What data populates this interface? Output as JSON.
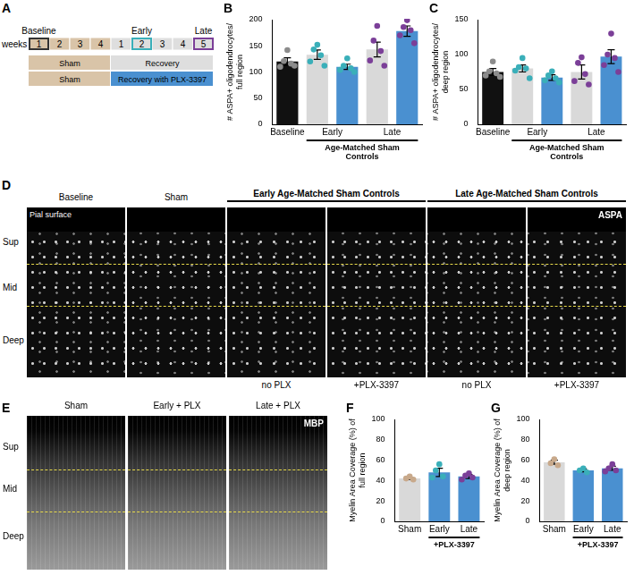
{
  "timeline": {
    "panel": "A",
    "axis_label": "weeks",
    "weeks": [
      1,
      2,
      3,
      4,
      1,
      2,
      3,
      4,
      5
    ],
    "phases": [
      {
        "label": "Baseline",
        "week_index": 0,
        "color": "#333333"
      },
      {
        "label": "Early",
        "week_index": 5,
        "color": "#3aafb9"
      },
      {
        "label": "Late",
        "week_index": 8,
        "color": "#7b3f98"
      }
    ],
    "rows": [
      [
        {
          "label": "Sham",
          "span": 4,
          "color": "#d9c4a8"
        },
        {
          "label": "Recovery",
          "span": 5,
          "color": "#dedede"
        }
      ],
      [
        {
          "label": "Sham",
          "span": 4,
          "color": "#d9c4a8"
        },
        {
          "label": "Recovery with PLX-3397",
          "span": 5,
          "color": "#4a90d0"
        }
      ]
    ]
  },
  "chart_data": [
    {
      "panel": "B",
      "type": "bar",
      "y_label": "# ASPA+ oligodendrocytes/full region",
      "ylim": [
        0,
        200
      ],
      "yticks": [
        0,
        50,
        100,
        150,
        200
      ],
      "grid": false,
      "bars": [
        {
          "group": "Baseline",
          "value": 120,
          "error": 7,
          "points": [
            142,
            121,
            116,
            110,
            112
          ],
          "color": "#111111",
          "point_color": "#8c8c8c"
        },
        {
          "group": "Early",
          "value": 133,
          "error": 9,
          "points": [
            152,
            143,
            132,
            120,
            112
          ],
          "color": "#d9d9d9",
          "point_color": "#3aafb9"
        },
        {
          "group": "Early",
          "value": 110,
          "error": 5,
          "points": [
            126,
            112,
            107,
            104,
            100
          ],
          "color": "#4a90d0",
          "point_color": "#3aafb9"
        },
        {
          "group": "Late",
          "value": 143,
          "error": 14,
          "points": [
            188,
            160,
            140,
            122,
            112
          ],
          "color": "#d9d9d9",
          "point_color": "#7b3f98"
        },
        {
          "group": "Late",
          "value": 178,
          "error": 10,
          "points": [
            199,
            186,
            180,
            170,
            155
          ],
          "color": "#4a90d0",
          "point_color": "#7b3f98"
        }
      ],
      "bracket": {
        "label": "Age-Matched Sham Controls",
        "groups": [
          "Early",
          "Late"
        ]
      }
    },
    {
      "panel": "C",
      "type": "bar",
      "y_label": "# ASPA+ oligodendrocytes/deep region",
      "ylim": [
        0,
        150
      ],
      "yticks": [
        0,
        50,
        100,
        150
      ],
      "grid": false,
      "bars": [
        {
          "group": "Baseline",
          "value": 75,
          "error": 5,
          "points": [
            90,
            76,
            73,
            70,
            68
          ],
          "color": "#111111",
          "point_color": "#8c8c8c"
        },
        {
          "group": "Early",
          "value": 80,
          "error": 5,
          "points": [
            95,
            82,
            80,
            77,
            66
          ],
          "color": "#d9d9d9",
          "point_color": "#3aafb9"
        },
        {
          "group": "Early",
          "value": 67,
          "error": 4,
          "points": [
            76,
            70,
            66,
            63,
            60
          ],
          "color": "#4a90d0",
          "point_color": "#3aafb9"
        },
        {
          "group": "Late",
          "value": 75,
          "error": 10,
          "points": [
            96,
            88,
            72,
            62,
            57
          ],
          "color": "#d9d9d9",
          "point_color": "#7b3f98"
        },
        {
          "group": "Late",
          "value": 97,
          "error": 10,
          "points": [
            130,
            100,
            95,
            85,
            75
          ],
          "color": "#4a90d0",
          "point_color": "#7b3f98"
        }
      ],
      "bracket": {
        "label": "Age-Matched Sham Controls",
        "groups": [
          "Early",
          "Late"
        ]
      }
    },
    {
      "panel": "F",
      "type": "bar",
      "y_label": "Myelin Area Coverage (%) of full region",
      "ylim": [
        0,
        100
      ],
      "yticks": [
        0,
        20,
        40,
        60,
        80,
        100
      ],
      "grid": false,
      "bars": [
        {
          "group": "Sham",
          "value": 42,
          "error": 1,
          "points": [
            44,
            42,
            41
          ],
          "color": "#d9d9d9",
          "point_color": "#c8a98b"
        },
        {
          "group": "Early",
          "value": 48,
          "error": 4,
          "points": [
            56,
            50,
            44,
            43
          ],
          "color": "#4a90d0",
          "point_color": "#3aafb9"
        },
        {
          "group": "Late",
          "value": 44,
          "error": 2,
          "points": [
            47,
            45,
            43,
            41
          ],
          "color": "#4a90d0",
          "point_color": "#7b3f98"
        }
      ],
      "bracket": {
        "label": "+PLX-3397",
        "groups": [
          "Early",
          "Late"
        ]
      }
    },
    {
      "panel": "G",
      "type": "bar",
      "y_label": "Myelin Area Coverage (%) of deep region",
      "ylim": [
        0,
        100
      ],
      "yticks": [
        0,
        20,
        40,
        60,
        80,
        100
      ],
      "grid": false,
      "bars": [
        {
          "group": "Sham",
          "value": 58,
          "error": 2,
          "points": [
            61,
            57,
            55
          ],
          "color": "#d9d9d9",
          "point_color": "#c8a98b"
        },
        {
          "group": "Early",
          "value": 50,
          "error": 1.5,
          "points": [
            52,
            50,
            48
          ],
          "color": "#4a90d0",
          "point_color": "#3aafb9"
        },
        {
          "group": "Late",
          "value": 52,
          "error": 2,
          "points": [
            56,
            52,
            50,
            49
          ],
          "color": "#4a90d0",
          "point_color": "#7b3f98"
        }
      ],
      "bracket": {
        "label": "+PLX-3397",
        "groups": [
          "Early",
          "Late"
        ]
      }
    }
  ],
  "image_panels": [
    {
      "panel": "D",
      "stain": "ASPA",
      "surface_label": "Pial surface",
      "layers": [
        "Sup",
        "Mid",
        "Deep"
      ],
      "headers": [
        {
          "label": "Baseline",
          "span": 1
        },
        {
          "label": "Sham",
          "span": 1
        },
        {
          "label": "Early Age-Matched Sham Controls",
          "span": 2
        },
        {
          "label": "Late Age-Matched Sham Controls",
          "span": 2
        }
      ],
      "footers": [
        null,
        null,
        "no PLX",
        "+PLX-3397",
        "no PLX",
        "+PLX-3397"
      ]
    },
    {
      "panel": "E",
      "stain": "MBP",
      "layers": [
        "Sup",
        "Mid",
        "Deep"
      ],
      "headers": [
        {
          "label": "Sham",
          "span": 1
        },
        {
          "label": "Early + PLX",
          "span": 1
        },
        {
          "label": "Late + PLX",
          "span": 1
        }
      ]
    }
  ]
}
